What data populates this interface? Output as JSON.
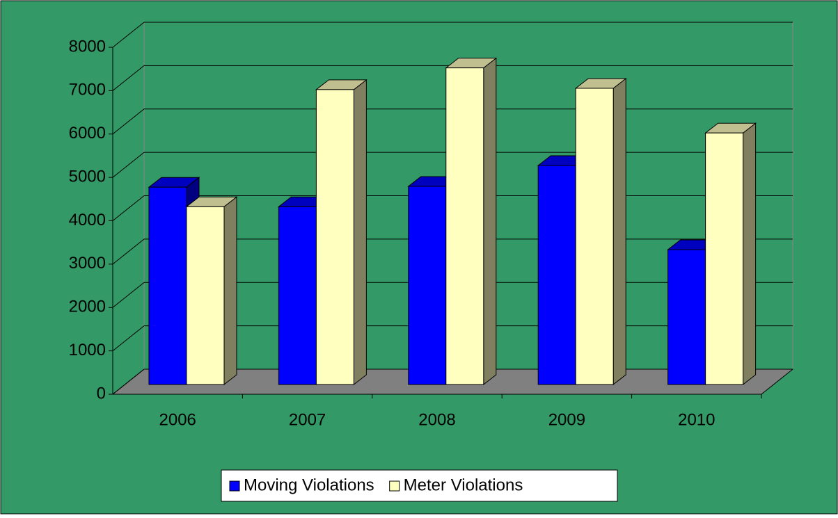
{
  "chart_data": {
    "type": "bar3d",
    "categories": [
      "2006",
      "2007",
      "2008",
      "2009",
      "2010"
    ],
    "series": [
      {
        "name": "Moving Violations",
        "color": "#0000ff",
        "values": [
          4550,
          4100,
          4570,
          5050,
          3110
        ]
      },
      {
        "name": "Meter Violations",
        "color": "#ffffc0",
        "values": [
          4100,
          6800,
          7300,
          6830,
          5800
        ]
      }
    ],
    "ylim": [
      0,
      8000
    ],
    "yticks": [
      0,
      1000,
      2000,
      3000,
      4000,
      5000,
      6000,
      7000,
      8000
    ],
    "grid": true,
    "background": "#339966",
    "floor_color": "#808080",
    "legend": "bottom"
  }
}
